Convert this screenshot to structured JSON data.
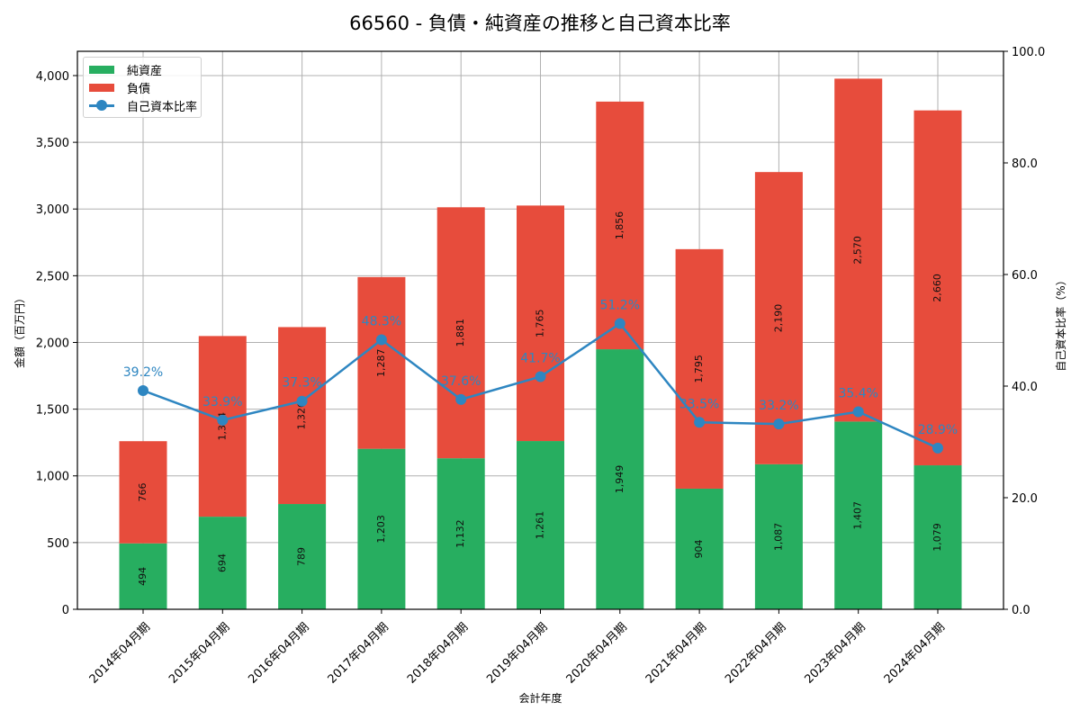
{
  "title": "66560 - 負債・純資産の推移と自己資本比率",
  "colors": {
    "net_assets": "#27ae60",
    "liabilities": "#e74c3c",
    "equity_ratio": "#2e86c1",
    "grid": "#b0b0b0"
  },
  "legend": {
    "items": [
      {
        "label": "純資産",
        "type": "bar"
      },
      {
        "label": "負債",
        "type": "bar"
      },
      {
        "label": "自己資本比率",
        "type": "line"
      }
    ]
  },
  "axes": {
    "x_label": "会計年度",
    "y_left_label": "金額（百万円）",
    "y_right_label": "自己資本比率（%）",
    "y_left_ticks": [
      "0",
      "500",
      "1,000",
      "1,500",
      "2,000",
      "2,500",
      "3,000",
      "3,500",
      "4,000"
    ],
    "y_right_ticks": [
      "0.0",
      "20.0",
      "40.0",
      "60.0",
      "80.0",
      "100.0"
    ]
  },
  "chart_data": {
    "type": "bar",
    "title": "66560 - 負債・純資産の推移と自己資本比率",
    "xlabel": "会計年度",
    "ylabel": "金額（百万円）",
    "y2label": "自己資本比率（%）",
    "ylim": [
      0,
      4182
    ],
    "y2lim": [
      0,
      100
    ],
    "grid": true,
    "legend_position": "upper left",
    "stacked": true,
    "categories": [
      "2014年04月期",
      "2015年04月期",
      "2016年04月期",
      "2017年04月期",
      "2018年04月期",
      "2019年04月期",
      "2020年04月期",
      "2021年04月期",
      "2022年04月期",
      "2023年04月期",
      "2024年04月期"
    ],
    "series": [
      {
        "name": "純資産",
        "type": "bar",
        "axis": "left",
        "values": [
          494,
          694,
          789,
          1203,
          1132,
          1261,
          1949,
          904,
          1087,
          1407,
          1079
        ],
        "labels": [
          "494",
          "694",
          "789",
          "1,203",
          "1,132",
          "1,261",
          "1,949",
          "904",
          "1,087",
          "1,407",
          "1,079"
        ]
      },
      {
        "name": "負債",
        "type": "bar",
        "axis": "left",
        "values": [
          766,
          1354,
          1326,
          1287,
          1881,
          1765,
          1856,
          1795,
          2190,
          2570,
          2660
        ],
        "labels": [
          "766",
          "1,354",
          "1,326",
          "1,287",
          "1,881",
          "1,765",
          "1,856",
          "1,795",
          "2,190",
          "2,570",
          "2,660"
        ]
      },
      {
        "name": "自己資本比率",
        "type": "line",
        "axis": "right",
        "values": [
          39.2,
          33.9,
          37.3,
          48.3,
          37.6,
          41.7,
          51.2,
          33.5,
          33.2,
          35.4,
          28.9
        ],
        "labels": [
          "39.2%",
          "33.9%",
          "37.3%",
          "48.3%",
          "37.6%",
          "41.7%",
          "51.2%",
          "33.5%",
          "33.2%",
          "35.4%",
          "28.9%"
        ]
      }
    ]
  }
}
